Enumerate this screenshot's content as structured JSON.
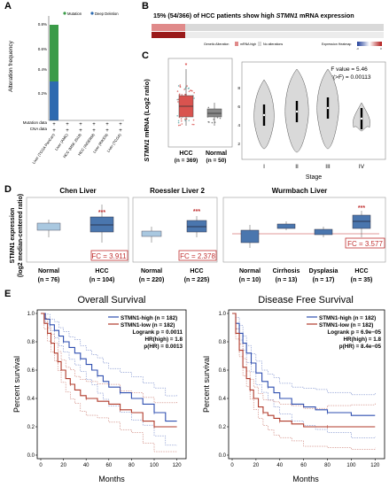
{
  "panel_letters": {
    "a": "A",
    "b": "B",
    "c": "C",
    "d": "D",
    "e": "E"
  },
  "panel_a": {
    "legend": [
      "Mutation",
      "Deep Deletion"
    ],
    "ylabel": "Alteration frequency",
    "yticks": [
      "0.8%",
      "0.6%",
      "0.4%",
      "0.2%"
    ],
    "row_labels": [
      "Mutation data",
      "CNA data"
    ],
    "xcats": [
      "Liver (TCGA PanCan)",
      "Liver (AMC)",
      "HCC (MSK 2018)",
      "HCC (INSERM)",
      "Liver (RIKEN)",
      "Liver (TCGA)"
    ],
    "colors": {
      "mutation": "#3a9b48",
      "deletion": "#2d6ab0"
    }
  },
  "panel_b": {
    "title_pre": "15% (54/366) of HCC patients show high ",
    "title_gene": "STMN1",
    "title_post": " mRNA expression",
    "legend": [
      "Genetic Alteration",
      "mRNA high",
      "No alterations",
      "Expression Heatmap"
    ],
    "heat_ticks": [
      "-3",
      "3"
    ]
  },
  "panel_c": {
    "ylabel": "STMN1 mRNA (Log2 ratio)",
    "ylabel_gene": "STMN1",
    "ylabel_rest": " mRNA (Log2 ratio)",
    "box": {
      "hcc_label": "HCC",
      "hcc_n": "(n = 369)",
      "normal_label": "Normal",
      "normal_n": "(n = 50)"
    },
    "violin": {
      "stats1": "F value = 5.46",
      "stats2": "Pr(>F) = 0.00113",
      "xlabel": "Stage",
      "stages": [
        "I",
        "II",
        "III",
        "IV"
      ],
      "yticks": [
        "8",
        "6",
        "4",
        "2"
      ]
    }
  },
  "panel_d": {
    "ylabel1": "STMN1 expression",
    "ylabel2": "(log2 median-centered ratio)",
    "plots": [
      {
        "title": "Chen Liver",
        "groups": [
          "Normal",
          "HCC"
        ],
        "ns": [
          "(n = 76)",
          "(n = 104)"
        ],
        "fc": "FC = 3.911",
        "sig": "***"
      },
      {
        "title": "Roessler Liver 2",
        "groups": [
          "Normal",
          "HCC"
        ],
        "ns": [
          "(n = 220)",
          "(n = 225)"
        ],
        "fc": "FC = 2.378",
        "sig": "***"
      },
      {
        "title": "Wurmbach Liver",
        "groups": [
          "Normal",
          "Cirrhosis",
          "Dysplasia",
          "HCC"
        ],
        "ns": [
          "(n = 10)",
          "(n = 13)",
          "(n = 17)",
          "(n = 35)"
        ],
        "fc": "FC = 3.577",
        "sig": "***"
      }
    ]
  },
  "panel_e": {
    "plots": [
      {
        "title": "Overall Survival",
        "legend": [
          "STMN1-high (n = 182)",
          "STMN1-low (n = 182)"
        ],
        "stats": [
          "Logrank p = 0.0011",
          "HR(high) = 1.8",
          "p(HR) = 0.0013"
        ]
      },
      {
        "title": "Disease Free Survival",
        "legend": [
          "STMN1-high (n = 182)",
          "STMN1-low (n = 182)"
        ],
        "stats": [
          "Logrank p = 6.9e−05",
          "HR(high) = 1.8",
          "p(HR) = 8.4e−05"
        ]
      }
    ],
    "ylabel": "Percent survival",
    "xlabel": "Months",
    "yticks": [
      "1.0",
      "0.8",
      "0.6",
      "0.4",
      "0.2",
      "0.0"
    ],
    "xticks": [
      "0",
      "20",
      "40",
      "60",
      "80",
      "100",
      "120"
    ],
    "colors": {
      "high": "#2f4fb0",
      "low": "#b03a2a"
    }
  }
}
